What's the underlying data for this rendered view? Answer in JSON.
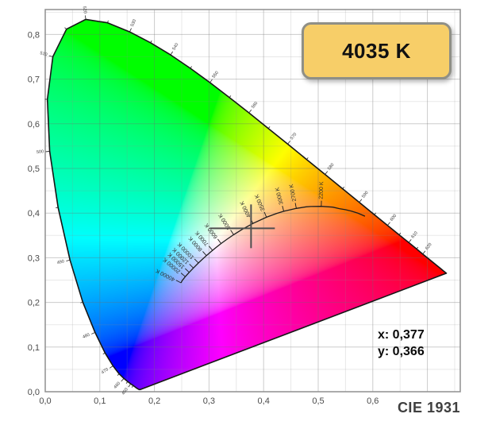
{
  "badge": {
    "label": "4035 K"
  },
  "readout": {
    "x": "x: 0,377",
    "y": "y: 0,366"
  },
  "caption": "CIE 1931",
  "colors": {
    "badge_fill": "#F7CE68",
    "badge_border": "#8F8F86",
    "grid_major": "#c9c9c9",
    "grid_minor": "#e0e0e0",
    "plot_border": "#8f8f8f",
    "locus_stroke": "#161616",
    "planckian_stroke": "#1c1c1c",
    "crosshair": "#4f4f4f",
    "axis_text": "#4a4a4a",
    "tiny_text": "#3c3c3c"
  },
  "chart_data": {
    "type": "scatter",
    "title": "CIE 1931",
    "xlabel": "",
    "ylabel": "",
    "xlim": [
      0,
      0.7602
    ],
    "ylim": [
      0,
      0.8559
    ],
    "grid_step": 0.05,
    "grid": true,
    "x_tick_values": [
      0,
      0.1,
      0.2,
      0.3,
      0.4,
      0.5,
      0.6
    ],
    "x_tick_labels": [
      "0,0",
      "0,1",
      "0,2",
      "0,3",
      "0,4",
      "0,5",
      "0,6"
    ],
    "y_tick_values": [
      0,
      0.1,
      0.2,
      0.3,
      0.4,
      0.5,
      0.6,
      0.7,
      0.8
    ],
    "y_tick_labels": [
      "0,0",
      "0,1",
      "0,2",
      "0,3",
      "0,4",
      "0,5",
      "0,6",
      "0,7",
      "0,8"
    ],
    "selected_point": {
      "x": 0.377,
      "y": 0.366,
      "cct_kelvin": 4035
    },
    "planckian_locus": [
      [
        1500,
        0.5857,
        0.3931
      ],
      [
        1600,
        0.5731,
        0.3996
      ],
      [
        1700,
        0.5611,
        0.4043
      ],
      [
        1800,
        0.5497,
        0.4077
      ],
      [
        1900,
        0.5388,
        0.41
      ],
      [
        2000,
        0.5267,
        0.4133
      ],
      [
        2200,
        0.5056,
        0.4152
      ],
      [
        2400,
        0.4868,
        0.4148
      ],
      [
        2500,
        0.478,
        0.414
      ],
      [
        2700,
        0.4599,
        0.4106
      ],
      [
        3000,
        0.4369,
        0.4041
      ],
      [
        3200,
        0.4234,
        0.399
      ],
      [
        3500,
        0.4053,
        0.3907
      ],
      [
        4000,
        0.3805,
        0.3768
      ],
      [
        4500,
        0.3608,
        0.3636
      ],
      [
        5000,
        0.3451,
        0.3516
      ],
      [
        5500,
        0.3324,
        0.341
      ],
      [
        6000,
        0.3221,
        0.3318
      ],
      [
        6500,
        0.3135,
        0.3237
      ],
      [
        7000,
        0.3064,
        0.3166
      ],
      [
        8000,
        0.2952,
        0.3048
      ],
      [
        9000,
        0.2869,
        0.2956
      ],
      [
        10000,
        0.2806,
        0.2883
      ],
      [
        12000,
        0.2714,
        0.277
      ],
      [
        15000,
        0.2637,
        0.2673
      ],
      [
        20000,
        0.2565,
        0.2577
      ],
      [
        30000,
        0.2509,
        0.249
      ],
      [
        40000,
        0.2487,
        0.2438
      ]
    ],
    "cct_tick_labels": [
      [
        2200,
        "2200 K"
      ],
      [
        2700,
        "2700 K"
      ],
      [
        3000,
        "3000 K"
      ],
      [
        3500,
        "3500 K"
      ],
      [
        4000,
        "4000 K"
      ],
      [
        5000,
        "5000 K"
      ],
      [
        6000,
        "6000 K"
      ],
      [
        7000,
        "7000 K"
      ],
      [
        8000,
        "8000 K"
      ],
      [
        10000,
        "10000 K"
      ],
      [
        12000,
        "12000 K"
      ],
      [
        15000,
        "15000 K"
      ],
      [
        20000,
        "20000 K"
      ],
      [
        40000,
        "40000 K"
      ]
    ],
    "spectral_locus": [
      [
        380,
        0.1741,
        0.005
      ],
      [
        390,
        0.1738,
        0.0049
      ],
      [
        400,
        0.1733,
        0.0048
      ],
      [
        410,
        0.1726,
        0.0048
      ],
      [
        420,
        0.1714,
        0.0051
      ],
      [
        425,
        0.1703,
        0.0058
      ],
      [
        430,
        0.1689,
        0.0069
      ],
      [
        435,
        0.1669,
        0.0086
      ],
      [
        440,
        0.1644,
        0.0109
      ],
      [
        445,
        0.1611,
        0.0138
      ],
      [
        450,
        0.1566,
        0.0177
      ],
      [
        455,
        0.151,
        0.0227
      ],
      [
        460,
        0.144,
        0.0297
      ],
      [
        465,
        0.1355,
        0.0399
      ],
      [
        470,
        0.1241,
        0.0578
      ],
      [
        475,
        0.1096,
        0.0868
      ],
      [
        480,
        0.0913,
        0.1327
      ],
      [
        485,
        0.0687,
        0.2007
      ],
      [
        490,
        0.0454,
        0.295
      ],
      [
        495,
        0.0235,
        0.4127
      ],
      [
        500,
        0.0082,
        0.5384
      ],
      [
        505,
        0.0039,
        0.6548
      ],
      [
        510,
        0.0139,
        0.7502
      ],
      [
        515,
        0.0389,
        0.812
      ],
      [
        520,
        0.0743,
        0.8338
      ],
      [
        525,
        0.1142,
        0.8262
      ],
      [
        530,
        0.1547,
        0.8059
      ],
      [
        535,
        0.1929,
        0.7816
      ],
      [
        540,
        0.2296,
        0.7543
      ],
      [
        545,
        0.2658,
        0.7243
      ],
      [
        550,
        0.3016,
        0.6923
      ],
      [
        555,
        0.3373,
        0.6589
      ],
      [
        560,
        0.3731,
        0.6245
      ],
      [
        565,
        0.4087,
        0.5896
      ],
      [
        570,
        0.4441,
        0.5547
      ],
      [
        575,
        0.4788,
        0.5202
      ],
      [
        580,
        0.5125,
        0.4866
      ],
      [
        585,
        0.5448,
        0.4544
      ],
      [
        590,
        0.5752,
        0.4242
      ],
      [
        595,
        0.6029,
        0.3965
      ],
      [
        600,
        0.627,
        0.3725
      ],
      [
        605,
        0.6482,
        0.3514
      ],
      [
        610,
        0.6658,
        0.334
      ],
      [
        615,
        0.6801,
        0.3197
      ],
      [
        620,
        0.6915,
        0.3083
      ],
      [
        630,
        0.7079,
        0.292
      ],
      [
        640,
        0.719,
        0.2809
      ],
      [
        650,
        0.726,
        0.274
      ],
      [
        660,
        0.73,
        0.27
      ],
      [
        680,
        0.7334,
        0.2666
      ],
      [
        700,
        0.7347,
        0.2653
      ]
    ],
    "wavelength_major_ticks": [
      450,
      460,
      470,
      480,
      490,
      500,
      510,
      520,
      530,
      540,
      550,
      560,
      570,
      580,
      590,
      600,
      610,
      620
    ],
    "wavelength_minor_ticks": [
      445,
      455,
      465,
      475,
      485,
      495,
      505,
      515,
      525,
      535,
      545,
      555,
      565,
      575,
      585,
      595,
      605,
      615
    ]
  }
}
